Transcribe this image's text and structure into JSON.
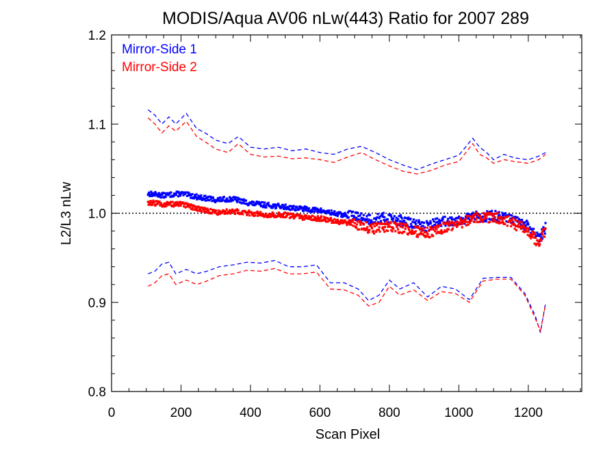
{
  "chart_data": {
    "type": "line",
    "title": "MODIS/Aqua AV06 nLw(443) Ratio for 2007 289",
    "xlabel": "Scan Pixel",
    "ylabel": "L2/L3 nLw",
    "xlim": [
      0,
      1354
    ],
    "ylim": [
      0.8,
      1.2
    ],
    "xticks": [
      0,
      200,
      400,
      600,
      800,
      1000,
      1200
    ],
    "xtick_labels": [
      "0",
      "200",
      "400",
      "600",
      "800",
      "1000",
      "1200"
    ],
    "yticks": [
      0.8,
      0.9,
      1.0,
      1.1,
      1.2
    ],
    "ytick_labels": [
      "0.8",
      "0.9",
      "1.0",
      "1.1",
      "1.2"
    ],
    "reference_line": 1.0,
    "legend_position": "top-left",
    "colors": {
      "ms1": "#0000ff",
      "ms2": "#ff0000",
      "reference": "#000000"
    },
    "series": [
      {
        "name": "Mirror-Side 1",
        "style": "points",
        "color": "#0000ff",
        "x": [
          105,
          150,
          200,
          250,
          300,
          350,
          400,
          450,
          500,
          550,
          600,
          650,
          700,
          750,
          800,
          850,
          900,
          950,
          1000,
          1050,
          1100,
          1150,
          1200,
          1230,
          1250
        ],
        "y": [
          1.022,
          1.02,
          1.022,
          1.018,
          1.015,
          1.016,
          1.011,
          1.009,
          1.007,
          1.005,
          1.003,
          0.999,
          0.996,
          0.993,
          0.995,
          0.99,
          0.985,
          0.99,
          0.993,
          0.996,
          0.997,
          0.993,
          0.985,
          0.97,
          0.984
        ]
      },
      {
        "name": "Mirror-Side 2",
        "style": "points",
        "color": "#ff0000",
        "x": [
          105,
          150,
          200,
          250,
          300,
          350,
          400,
          450,
          500,
          550,
          600,
          650,
          700,
          750,
          800,
          850,
          900,
          950,
          1000,
          1050,
          1100,
          1150,
          1200,
          1230,
          1250
        ],
        "y": [
          1.012,
          1.01,
          1.01,
          1.005,
          1.001,
          1.002,
          1.0,
          0.998,
          0.998,
          0.995,
          0.994,
          0.991,
          0.988,
          0.983,
          0.985,
          0.982,
          0.977,
          0.983,
          0.988,
          0.995,
          0.996,
          0.99,
          0.98,
          0.966,
          0.982
        ]
      },
      {
        "name": "",
        "style": "dashed",
        "color": "#0000ff",
        "x": [
          105,
          125,
          145,
          165,
          185,
          215,
          245,
          270,
          300,
          335,
          365,
          400,
          440,
          480,
          520,
          560,
          600,
          640,
          680,
          720,
          760,
          800,
          840,
          880,
          920,
          960,
          1000,
          1040,
          1060,
          1080,
          1100,
          1130,
          1160,
          1200,
          1230,
          1250
        ],
        "y": [
          1.116,
          1.11,
          1.1,
          1.108,
          1.1,
          1.112,
          1.095,
          1.09,
          1.082,
          1.078,
          1.086,
          1.074,
          1.072,
          1.074,
          1.07,
          1.072,
          1.068,
          1.066,
          1.072,
          1.075,
          1.068,
          1.06,
          1.054,
          1.049,
          1.055,
          1.06,
          1.065,
          1.084,
          1.074,
          1.068,
          1.06,
          1.066,
          1.062,
          1.06,
          1.064,
          1.068
        ]
      },
      {
        "name": "",
        "style": "dashed",
        "color": "#ff0000",
        "x": [
          105,
          125,
          145,
          165,
          185,
          215,
          245,
          270,
          300,
          335,
          365,
          400,
          440,
          480,
          520,
          560,
          600,
          640,
          680,
          720,
          760,
          800,
          840,
          880,
          920,
          960,
          1000,
          1040,
          1060,
          1080,
          1100,
          1130,
          1160,
          1200,
          1230,
          1250
        ],
        "y": [
          1.107,
          1.1,
          1.09,
          1.098,
          1.092,
          1.103,
          1.086,
          1.08,
          1.072,
          1.068,
          1.078,
          1.066,
          1.063,
          1.064,
          1.061,
          1.062,
          1.06,
          1.057,
          1.063,
          1.068,
          1.06,
          1.053,
          1.047,
          1.044,
          1.048,
          1.054,
          1.058,
          1.078,
          1.066,
          1.062,
          1.056,
          1.06,
          1.058,
          1.056,
          1.06,
          1.066
        ]
      },
      {
        "name": "",
        "style": "dashed",
        "color": "#0000ff",
        "x": [
          105,
          125,
          145,
          165,
          185,
          215,
          245,
          275,
          310,
          350,
          390,
          430,
          470,
          510,
          550,
          590,
          630,
          670,
          710,
          740,
          770,
          800,
          830,
          870,
          910,
          950,
          990,
          1030,
          1070,
          1110,
          1150,
          1190,
          1220,
          1235,
          1250
        ],
        "y": [
          0.932,
          0.935,
          0.943,
          0.945,
          0.932,
          0.937,
          0.932,
          0.935,
          0.94,
          0.942,
          0.945,
          0.944,
          0.947,
          0.94,
          0.94,
          0.942,
          0.922,
          0.922,
          0.915,
          0.902,
          0.908,
          0.925,
          0.915,
          0.922,
          0.906,
          0.918,
          0.915,
          0.903,
          0.927,
          0.928,
          0.928,
          0.91,
          0.885,
          0.866,
          0.9
        ]
      },
      {
        "name": "",
        "style": "dashed",
        "color": "#ff0000",
        "x": [
          105,
          125,
          145,
          165,
          185,
          215,
          245,
          275,
          310,
          350,
          390,
          430,
          470,
          510,
          550,
          590,
          630,
          670,
          710,
          740,
          770,
          800,
          830,
          870,
          910,
          950,
          990,
          1030,
          1070,
          1110,
          1150,
          1190,
          1220,
          1235,
          1250
        ],
        "y": [
          0.918,
          0.922,
          0.93,
          0.932,
          0.92,
          0.925,
          0.92,
          0.924,
          0.93,
          0.932,
          0.936,
          0.935,
          0.938,
          0.932,
          0.932,
          0.934,
          0.915,
          0.914,
          0.908,
          0.896,
          0.9,
          0.918,
          0.908,
          0.914,
          0.902,
          0.912,
          0.91,
          0.9,
          0.924,
          0.926,
          0.926,
          0.908,
          0.882,
          0.868,
          0.898
        ]
      }
    ]
  }
}
